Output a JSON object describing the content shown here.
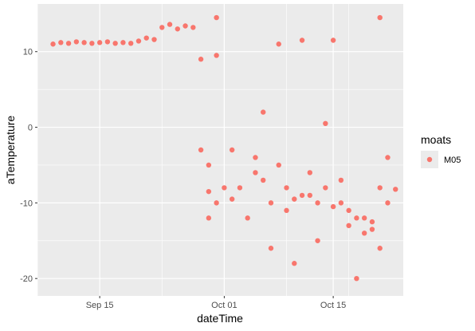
{
  "chart_data": {
    "type": "scatter",
    "title": "",
    "xlabel": "dateTime",
    "ylabel": "aTemperature",
    "x_ticks": [
      {
        "date": "2019-09-15",
        "label": "Sep 15"
      },
      {
        "date": "2019-10-01",
        "label": "Oct 01"
      },
      {
        "date": "2019-10-15",
        "label": "Oct 15"
      }
    ],
    "y_ticks": [
      {
        "value": 10,
        "label": "10"
      },
      {
        "value": 0,
        "label": "0"
      },
      {
        "value": -10,
        "label": "-10"
      },
      {
        "value": -20,
        "label": "-20"
      }
    ],
    "xlim": [
      "2019-09-07",
      "2019-10-24"
    ],
    "ylim": [
      -22.3,
      16.3
    ],
    "grid": true,
    "panel_background": "#EBEBEB",
    "legend": {
      "title": "moats",
      "position": "right",
      "entries": [
        {
          "label": "M05",
          "color": "#F8766D"
        }
      ]
    },
    "series": [
      {
        "name": "M05",
        "color": "#F8766D",
        "points": [
          [
            "2019-09-09",
            11.0
          ],
          [
            "2019-09-10",
            11.2
          ],
          [
            "2019-09-11",
            11.1
          ],
          [
            "2019-09-12",
            11.3
          ],
          [
            "2019-09-13",
            11.2
          ],
          [
            "2019-09-14",
            11.1
          ],
          [
            "2019-09-15",
            11.2
          ],
          [
            "2019-09-16",
            11.3
          ],
          [
            "2019-09-17",
            11.1
          ],
          [
            "2019-09-18",
            11.2
          ],
          [
            "2019-09-19",
            11.1
          ],
          [
            "2019-09-20",
            11.4
          ],
          [
            "2019-09-21",
            11.8
          ],
          [
            "2019-09-22",
            11.6
          ],
          [
            "2019-09-23",
            13.2
          ],
          [
            "2019-09-24",
            13.6
          ],
          [
            "2019-09-25",
            13.0
          ],
          [
            "2019-09-26",
            13.4
          ],
          [
            "2019-09-27",
            13.2
          ],
          [
            "2019-09-28",
            9.0
          ],
          [
            "2019-09-28",
            -3.0
          ],
          [
            "2019-09-29",
            -5.0
          ],
          [
            "2019-09-29",
            -8.5
          ],
          [
            "2019-09-29",
            -12.0
          ],
          [
            "2019-09-30",
            14.5
          ],
          [
            "2019-09-30",
            -10.0
          ],
          [
            "2019-09-30",
            9.5
          ],
          [
            "2019-10-01",
            -8.0
          ],
          [
            "2019-10-02",
            -9.5
          ],
          [
            "2019-10-02",
            -3.0
          ],
          [
            "2019-10-03",
            -8.0
          ],
          [
            "2019-10-04",
            -12.0
          ],
          [
            "2019-10-05",
            -6.0
          ],
          [
            "2019-10-05",
            -4.0
          ],
          [
            "2019-10-06",
            -7.0
          ],
          [
            "2019-10-06",
            2.0
          ],
          [
            "2019-10-07",
            -10.0
          ],
          [
            "2019-10-07",
            -16.0
          ],
          [
            "2019-10-08",
            -5.0
          ],
          [
            "2019-10-08",
            11.0
          ],
          [
            "2019-10-09",
            -8.0
          ],
          [
            "2019-10-09",
            -11.0
          ],
          [
            "2019-10-10",
            -9.5
          ],
          [
            "2019-10-10",
            -18.0
          ],
          [
            "2019-10-11",
            11.5
          ],
          [
            "2019-10-11",
            -9.0
          ],
          [
            "2019-10-12",
            -9.0
          ],
          [
            "2019-10-12",
            -6.0
          ],
          [
            "2019-10-13",
            -10.0
          ],
          [
            "2019-10-13",
            -15.0
          ],
          [
            "2019-10-14",
            -8.0
          ],
          [
            "2019-10-14",
            0.5
          ],
          [
            "2019-10-15",
            11.5
          ],
          [
            "2019-10-15",
            -10.5
          ],
          [
            "2019-10-16",
            -10.0
          ],
          [
            "2019-10-16",
            -7.0
          ],
          [
            "2019-10-17",
            -11.0
          ],
          [
            "2019-10-17",
            -13.0
          ],
          [
            "2019-10-18",
            -12.0
          ],
          [
            "2019-10-18",
            -20.0
          ],
          [
            "2019-10-19",
            -12.0
          ],
          [
            "2019-10-19",
            -14.0
          ],
          [
            "2019-10-20",
            -12.5
          ],
          [
            "2019-10-20",
            -13.5
          ],
          [
            "2019-10-21",
            -8.0
          ],
          [
            "2019-10-21",
            14.5
          ],
          [
            "2019-10-21",
            -16.0
          ],
          [
            "2019-10-22",
            -10.0
          ],
          [
            "2019-10-22",
            -4.0
          ],
          [
            "2019-10-23",
            -8.2
          ]
        ]
      }
    ]
  }
}
